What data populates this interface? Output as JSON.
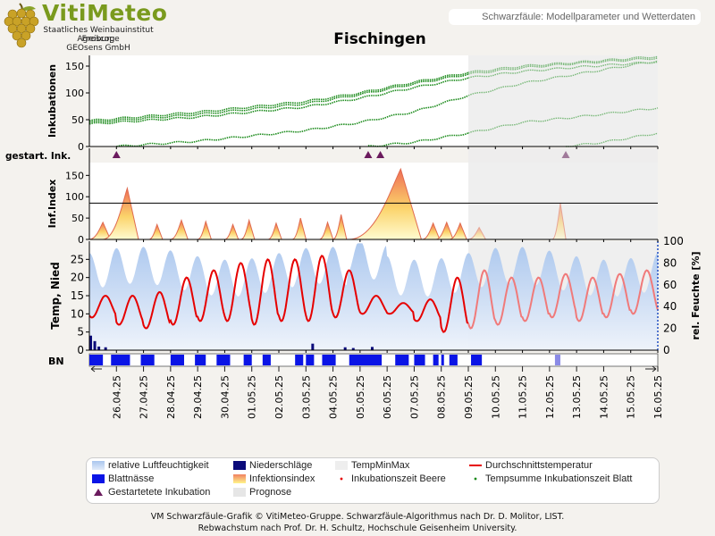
{
  "header": {
    "brand": "VitiMeteo",
    "org_lines": [
      "Staatliches Weinbauinstitut Freiburg",
      "Agroscope",
      "GEOsens GmbH"
    ],
    "model_title": "Schwarzfäule: Modellparameter und Wetterdaten",
    "station": "Fischingen"
  },
  "footer": {
    "line1": "VM Schwarzfäule-Grafik © VitiMeteo-Gruppe. Schwarzfäule-Algorithmus nach Dr. D. Molitor, LIST.",
    "line2": "Rebwachstum nach Prof. Dr. H. Schultz, Hochschule Geisenheim University."
  },
  "legend": {
    "items": [
      {
        "label": "relative Luftfeuchtigkeit",
        "swatch": "humidity"
      },
      {
        "label": "Niederschläge",
        "swatch": "precip"
      },
      {
        "label": "TempMinMax",
        "swatch": "tempminmax"
      },
      {
        "label": "Durchschnittstemperatur",
        "swatch": "avgtemp"
      },
      {
        "label": "Blattnässe",
        "swatch": "leafwet"
      },
      {
        "label": "Infektionsindex",
        "swatch": "infindex"
      },
      {
        "label": "Inkubationszeit Beere",
        "swatch": "incberry"
      },
      {
        "label": "Tempsumme Inkubationszeit Blatt",
        "swatch": "incleaf"
      },
      {
        "label": "Gestartetete Inkubation",
        "swatch": "triangle"
      },
      {
        "label": "Prognose",
        "swatch": "forecast"
      }
    ]
  },
  "colors": {
    "humidity": "#a9c6ee",
    "precip": "#0b0b7a",
    "leafwet": "#0a14e6",
    "avgtemp": "#e60000",
    "incubation": "#1a8a1a",
    "triangle": "#6b1b5e",
    "forecast": "#e6e6e6"
  },
  "chart_data": [
    {
      "type": "line",
      "panel": "Inkubationen",
      "ylabel": "Inkubationen",
      "ylim": [
        0,
        170
      ],
      "yticks": [
        0,
        50,
        100,
        150
      ],
      "x_start": "25.04.25",
      "x_end": "16.05.25",
      "forecast_start": "09.05.25 (ca. 22:00)",
      "series": [
        {
          "values_at_days": [
            [
              0,
              42
            ],
            [
              4,
              55
            ],
            [
              8,
              74
            ],
            [
              10,
              90
            ],
            [
              12,
              110
            ],
            [
              14,
              128
            ],
            [
              16,
              140
            ],
            [
              18,
              148
            ],
            [
              21,
              158
            ]
          ]
        },
        {
          "values_at_days": [
            [
              0,
              45
            ],
            [
              4,
              60
            ],
            [
              8,
              80
            ],
            [
              10,
              97
            ],
            [
              12,
              117
            ],
            [
              14,
              135
            ],
            [
              16,
              147
            ],
            [
              18,
              155
            ],
            [
              21,
              165
            ]
          ]
        },
        {
          "values_at_days": [
            [
              0,
              48
            ],
            [
              4,
              64
            ],
            [
              8,
              84
            ],
            [
              10,
              100
            ],
            [
              12,
              120
            ],
            [
              14,
              138
            ],
            [
              16,
              150
            ],
            [
              18,
              157
            ],
            [
              21,
              168
            ]
          ]
        },
        {
          "values_at_days": [
            [
              1.0,
              0
            ],
            [
              4,
              10
            ],
            [
              8,
              30
            ],
            [
              10,
              45
            ],
            [
              12,
              65
            ],
            [
              14,
              95
            ],
            [
              16,
              118
            ],
            [
              18,
              135
            ],
            [
              21,
              160
            ]
          ]
        },
        {
          "values_at_days": [
            [
              10.3,
              0
            ],
            [
              12,
              8
            ],
            [
              14,
              25
            ],
            [
              16,
              45
            ],
            [
              18,
              55
            ],
            [
              21,
              72
            ]
          ]
        },
        {
          "values_at_days": [
            [
              17.6,
              0
            ],
            [
              19,
              8
            ],
            [
              21,
              25
            ]
          ]
        }
      ]
    },
    {
      "type": "scatter",
      "panel": "gestart. Ink.",
      "markers_at_days": [
        1.0,
        10.3,
        10.75,
        17.6
      ]
    },
    {
      "type": "area",
      "panel": "Inf.Index",
      "ylabel": "Inf.Index",
      "ylim": [
        0,
        180
      ],
      "yticks": [
        0,
        50,
        100,
        150
      ],
      "threshold": 85,
      "peaks": [
        {
          "start": 0.0,
          "peak_day": 0.5,
          "peak": 40
        },
        {
          "start": 0.5,
          "peak_day": 1.4,
          "peak": 120
        },
        {
          "start": 2.2,
          "peak_day": 2.5,
          "peak": 35
        },
        {
          "start": 3.0,
          "peak_day": 3.4,
          "peak": 45
        },
        {
          "start": 4.0,
          "peak_day": 4.3,
          "peak": 42
        },
        {
          "start": 5.0,
          "peak_day": 5.3,
          "peak": 35
        },
        {
          "start": 5.6,
          "peak_day": 5.9,
          "peak": 45
        },
        {
          "start": 6.6,
          "peak_day": 6.9,
          "peak": 38
        },
        {
          "start": 7.5,
          "peak_day": 7.8,
          "peak": 50
        },
        {
          "start": 8.5,
          "peak_day": 8.8,
          "peak": 40
        },
        {
          "start": 9.0,
          "peak_day": 9.3,
          "peak": 58
        },
        {
          "start": 9.6,
          "peak_day": 11.5,
          "peak": 165
        },
        {
          "start": 12.3,
          "peak_day": 12.7,
          "peak": 38
        },
        {
          "start": 12.8,
          "peak_day": 13.2,
          "peak": 40
        },
        {
          "start": 13.3,
          "peak_day": 13.7,
          "peak": 38
        },
        {
          "start": 14.0,
          "peak_day": 14.4,
          "peak": 28
        },
        {
          "start": 17.1,
          "peak_day": 17.4,
          "peak": 85
        }
      ]
    },
    {
      "type": "line",
      "panel": "Temp, Nied",
      "ylabel": "Temp, Nied",
      "y2label": "rel. Feuchte [%]",
      "ylim": [
        0,
        30
      ],
      "y2lim": [
        0,
        100
      ],
      "yticks": [
        0,
        5,
        10,
        15,
        20,
        25
      ],
      "y2ticks": [
        0,
        20,
        40,
        60,
        80,
        100
      ],
      "avg_temp_daily": [
        {
          "day": 0,
          "min": 9,
          "max": 15
        },
        {
          "day": 1,
          "min": 7,
          "max": 15
        },
        {
          "day": 2,
          "min": 6,
          "max": 16
        },
        {
          "day": 3,
          "min": 7,
          "max": 20
        },
        {
          "day": 4,
          "min": 8,
          "max": 22
        },
        {
          "day": 5,
          "min": 8,
          "max": 24
        },
        {
          "day": 6,
          "min": 7,
          "max": 25
        },
        {
          "day": 7,
          "min": 8,
          "max": 25
        },
        {
          "day": 8,
          "min": 8,
          "max": 26
        },
        {
          "day": 9,
          "min": 9,
          "max": 22
        },
        {
          "day": 10,
          "min": 10,
          "max": 15
        },
        {
          "day": 11,
          "min": 10,
          "max": 13
        },
        {
          "day": 12,
          "min": 8,
          "max": 14
        },
        {
          "day": 13,
          "min": 5,
          "max": 20
        },
        {
          "day": 14,
          "min": 6,
          "max": 22
        },
        {
          "day": 15,
          "min": 7,
          "max": 20
        },
        {
          "day": 16,
          "min": 8,
          "max": 20
        },
        {
          "day": 17,
          "min": 9,
          "max": 21
        },
        {
          "day": 18,
          "min": 8,
          "max": 20
        },
        {
          "day": 19,
          "min": 9,
          "max": 21
        },
        {
          "day": 20,
          "min": 10,
          "max": 22
        }
      ]
    },
    {
      "type": "bar",
      "panel": "BN",
      "ylabel": "BN",
      "wet_intervals_days": [
        [
          0,
          0.5
        ],
        [
          0.8,
          1.5
        ],
        [
          1.9,
          2.4
        ],
        [
          3.0,
          3.5
        ],
        [
          3.9,
          4.3
        ],
        [
          4.7,
          5.2
        ],
        [
          5.7,
          6.0
        ],
        [
          6.4,
          6.7
        ],
        [
          7.6,
          7.9
        ],
        [
          8.0,
          8.3
        ],
        [
          8.6,
          9.1
        ],
        [
          9.6,
          10.8
        ],
        [
          11.3,
          11.8
        ],
        [
          12.0,
          12.4
        ],
        [
          12.7,
          12.9
        ],
        [
          13.0,
          13.1
        ],
        [
          13.3,
          13.6
        ],
        [
          14.1,
          14.5
        ]
      ],
      "forecast_wet_intervals_days": [
        [
          17.2,
          17.4
        ]
      ]
    },
    {
      "type": "table",
      "panel": "x-axis",
      "categories": [
        "26.04.25",
        "27.04.25",
        "28.04.25",
        "29.04.25",
        "30.04.25",
        "01.05.25",
        "02.05.25",
        "03.05.25",
        "04.05.25",
        "05.05.25",
        "06.05.25",
        "07.05.25",
        "08.05.25",
        "09.05.25",
        "10.05.25",
        "11.05.25",
        "12.05.25",
        "13.05.25",
        "14.05.25",
        "15.05.25",
        "16.05.25"
      ]
    }
  ]
}
